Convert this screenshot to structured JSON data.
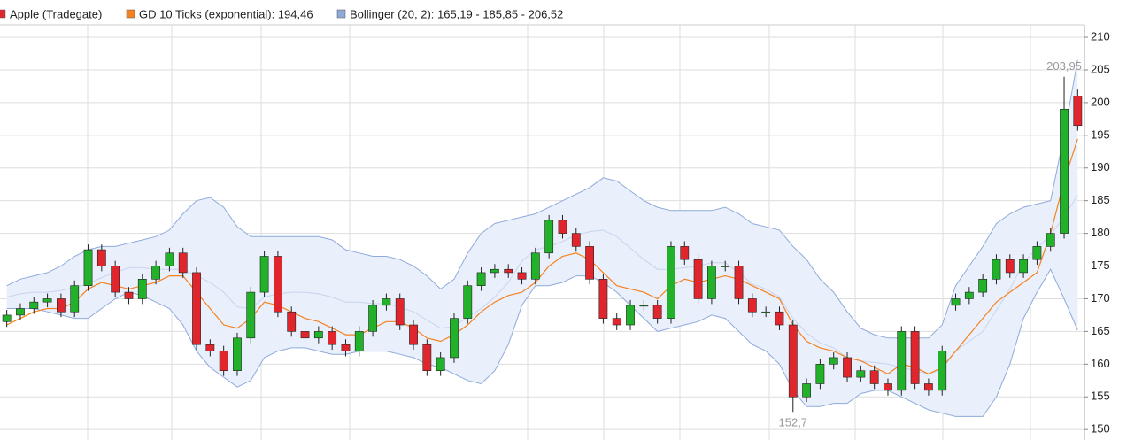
{
  "chart_data": {
    "type": "candlestick",
    "name": "Apple (Tradegate)",
    "up_color": "#22b22a",
    "down_color": "#e0262c",
    "open": [
      166.5,
      167.5,
      168.5,
      169.5,
      170,
      168,
      172,
      177.5,
      175,
      171,
      170,
      173,
      175,
      177,
      174,
      163,
      162,
      159,
      164,
      171,
      176.5,
      168,
      165,
      164,
      165,
      163,
      162,
      165,
      169,
      170,
      166,
      163,
      159,
      161,
      167,
      172,
      174,
      174.5,
      174,
      173,
      177,
      182,
      180,
      178,
      173,
      167,
      166,
      169,
      169,
      167,
      178,
      176,
      170,
      175,
      175,
      170,
      168,
      168,
      166,
      155,
      157,
      160,
      161,
      158,
      159,
      157,
      156,
      165,
      157,
      156,
      169,
      170,
      171,
      173,
      176,
      174,
      176,
      178,
      180,
      201
    ],
    "high": [
      168.3,
      169.3,
      170.3,
      170.8,
      170.8,
      172.8,
      178.3,
      178.3,
      175.8,
      171.8,
      173.8,
      175.8,
      177.8,
      177.8,
      174.8,
      163.8,
      162.8,
      164.8,
      171.8,
      177.3,
      177.3,
      168.8,
      165.8,
      165.8,
      165.8,
      163.8,
      165.8,
      169.8,
      170.8,
      170.8,
      166.8,
      163.8,
      161.8,
      167.8,
      172.8,
      174.8,
      175.3,
      175.3,
      174.8,
      177.8,
      182.8,
      182.8,
      180.8,
      178.8,
      173.8,
      167.8,
      169.8,
      169.8,
      169.8,
      178.8,
      178.8,
      176.8,
      175.8,
      175.8,
      175.8,
      170.8,
      168.8,
      168.8,
      166.8,
      157.8,
      160.8,
      161.8,
      161.8,
      159.8,
      159.8,
      157.8,
      165.8,
      165.8,
      157.8,
      162.8,
      170.8,
      171.8,
      173.8,
      176.8,
      176.8,
      176.8,
      178.8,
      180.8,
      203.95,
      202
    ],
    "low": [
      165.7,
      166.7,
      167.7,
      168.7,
      167.2,
      167.2,
      171.2,
      174.2,
      170.2,
      169.2,
      169.2,
      172.2,
      174.2,
      173.2,
      162.2,
      161.2,
      158.2,
      158.2,
      163.2,
      170.2,
      167.2,
      164.2,
      163.2,
      163.2,
      162.2,
      161.2,
      161.2,
      164.2,
      168.2,
      165.2,
      162.2,
      158.2,
      158.2,
      160.2,
      166.2,
      171.2,
      173.2,
      173.2,
      172.2,
      172.2,
      176.2,
      179.2,
      177.2,
      172.2,
      166.2,
      165.2,
      165.2,
      168.2,
      166.2,
      166.2,
      175.2,
      169.2,
      169.2,
      174.2,
      169.2,
      167.2,
      167.2,
      165.2,
      152.7,
      154.2,
      156.2,
      159.2,
      157.2,
      157.2,
      156.2,
      155.2,
      155.2,
      156.2,
      155.2,
      155.2,
      168.2,
      169.2,
      170.2,
      172.2,
      173.2,
      173.2,
      175.2,
      177.2,
      179.2,
      195.7
    ],
    "close": [
      167.5,
      168.5,
      169.5,
      170,
      168,
      172,
      177.5,
      175,
      171,
      170,
      173,
      175,
      177,
      174,
      163,
      162,
      159,
      164,
      171,
      176.5,
      168,
      165,
      164,
      165,
      163,
      162,
      165,
      169,
      170,
      166,
      163,
      159,
      161,
      167,
      172,
      174,
      174.5,
      174,
      173,
      177,
      182,
      180,
      178,
      173,
      167,
      166,
      169,
      169,
      167,
      178,
      176,
      170,
      175,
      175,
      170,
      168,
      168,
      166,
      155,
      157,
      160,
      161,
      158,
      159,
      157,
      156,
      165,
      157,
      156,
      162,
      170,
      171,
      173,
      176,
      174,
      176,
      178,
      180,
      199,
      196.5
    ],
    "ema": {
      "name": "GD 10 Ticks (exponential): 194,46",
      "color": "#f58220",
      "values": [
        166,
        167,
        168,
        168.5,
        168.5,
        169.5,
        171.5,
        172.5,
        172,
        171.5,
        172,
        172.5,
        173.5,
        173.5,
        171,
        168.5,
        166,
        165.5,
        167,
        169.5,
        169,
        168,
        167,
        166.5,
        165.5,
        164.5,
        164.5,
        165.5,
        166.5,
        166.5,
        165.5,
        164,
        163.5,
        164.5,
        166,
        168,
        169.5,
        170.5,
        171,
        172.5,
        175,
        176.5,
        177,
        176,
        174,
        172,
        171.5,
        171,
        170,
        172,
        173,
        172.5,
        173,
        173.5,
        173,
        172,
        171,
        170,
        166,
        163.5,
        162.5,
        162,
        161,
        160.5,
        159.5,
        158.5,
        160,
        159.5,
        158.5,
        159.5,
        162,
        164.5,
        167,
        169.5,
        171,
        172.5,
        174,
        180,
        188,
        194.46
      ]
    },
    "bollinger": {
      "name": "Bollinger (20, 2): 165,19 - 185,85 - 206,52",
      "color": "#8eaadb",
      "fill": "#e9effb",
      "upper": [
        172,
        173,
        173.5,
        174,
        175,
        176.5,
        177.5,
        178,
        178,
        178.5,
        179,
        179.5,
        180.5,
        183,
        185,
        185.5,
        184,
        181,
        179.5,
        179.5,
        179.5,
        179.5,
        179.5,
        179.5,
        179,
        177.5,
        177,
        176.5,
        176.5,
        176,
        175,
        173.5,
        171.5,
        173,
        177,
        180,
        181.5,
        182,
        182.5,
        183,
        184,
        185,
        186,
        187,
        188.5,
        188,
        186.5,
        185,
        184,
        183.5,
        183.5,
        183.5,
        183.5,
        184,
        183,
        181.5,
        181,
        180.5,
        178,
        176,
        173,
        171,
        168,
        165.5,
        164.5,
        164,
        164,
        164,
        164,
        166,
        172,
        175,
        178,
        181.5,
        183,
        184,
        184.5,
        185,
        195,
        206.52
      ],
      "middle": [
        170.25,
        170.75,
        171,
        171,
        171.25,
        171.75,
        172.25,
        173.25,
        174,
        174.75,
        174.75,
        174.5,
        174.5,
        174.5,
        173.5,
        172.5,
        171,
        168.75,
        168.5,
        170.25,
        170.75,
        171,
        171,
        170.75,
        170.25,
        169.5,
        169.5,
        169.25,
        169.25,
        168.75,
        168,
        166.75,
        165.5,
        165.75,
        167.25,
        168.5,
        170.25,
        172.5,
        175.75,
        177.5,
        178,
        178.75,
        179.75,
        180.25,
        180.5,
        179.5,
        177.75,
        176,
        174.5,
        174.5,
        174.75,
        175,
        175.5,
        175.5,
        174,
        172.25,
        171.5,
        170.25,
        167,
        164.75,
        163.25,
        162.5,
        161,
        160.5,
        160.25,
        160,
        159.5,
        159,
        158.5,
        159.25,
        162,
        163.5,
        165,
        168.25,
        171.5,
        175.5,
        177.75,
        179.75,
        182.5,
        185.85
      ],
      "lower": [
        168.5,
        168.5,
        168.5,
        168,
        167.5,
        167,
        167,
        168.5,
        170,
        171,
        170.5,
        169.5,
        168.5,
        166,
        162,
        159.5,
        158,
        156.5,
        157.5,
        161,
        162,
        162.5,
        162.5,
        162,
        161.5,
        161.5,
        162,
        162,
        162,
        161.5,
        161,
        160,
        159.5,
        158.5,
        157.5,
        157,
        159,
        163,
        169,
        172,
        172,
        172.5,
        173.5,
        173.5,
        172.5,
        171,
        169,
        167,
        165,
        165.5,
        166,
        166.5,
        167.5,
        167,
        165,
        163,
        162,
        160,
        156,
        153.5,
        153.5,
        154,
        154,
        155.5,
        156,
        156,
        155,
        154,
        153,
        152.5,
        152,
        152,
        152,
        155,
        160,
        167,
        171,
        174.5,
        170,
        165.19
      ]
    },
    "high_label": "203,95",
    "low_label": "152,7",
    "ylim": [
      148.4,
      211.9
    ],
    "yticks": [
      150,
      155,
      160,
      165,
      170,
      175,
      180,
      185,
      190,
      195,
      200,
      205,
      210
    ],
    "grid": true
  }
}
